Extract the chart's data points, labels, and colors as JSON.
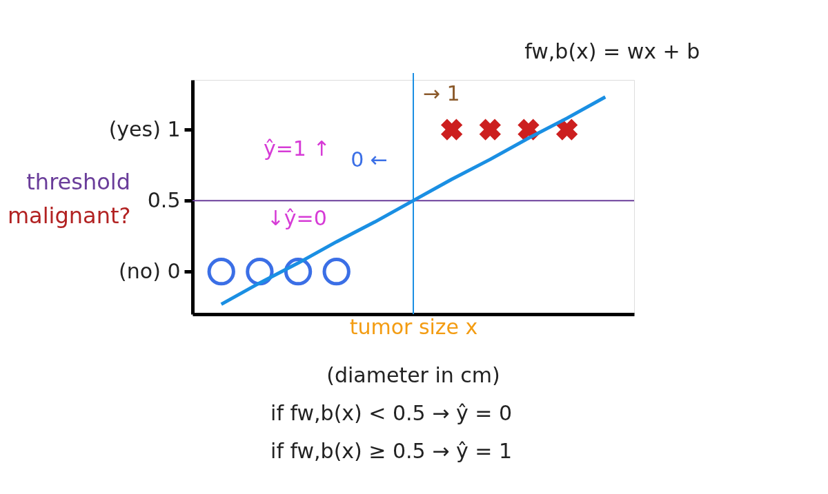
{
  "chart_data": {
    "type": "scatter",
    "xlabel": "tumor size x",
    "ylabel": "malignant?",
    "categories": [
      null,
      null,
      null,
      null,
      null,
      null,
      null,
      null,
      null,
      null,
      null
    ],
    "ylim": [
      -0.3,
      1.35
    ],
    "yticks": [
      {
        "value": 0,
        "label": "(no) 0"
      },
      {
        "value": 0.5,
        "label": "0.5"
      },
      {
        "value": 1,
        "label": "(yes) 1"
      }
    ],
    "tick_labels": "y",
    "grid": false,
    "series": [
      {
        "marker": "circle",
        "color": "#3b6fe6",
        "values": [
          0,
          0,
          0,
          0,
          null,
          null,
          null,
          null,
          null,
          null,
          null
        ]
      },
      {
        "marker": "cross",
        "color": "#cc1f1f",
        "values": [
          null,
          null,
          null,
          null,
          null,
          null,
          1,
          1,
          1,
          1,
          null
        ]
      },
      {
        "type": "line",
        "name": "fw,b(x) = wx + b",
        "color": "#1a8fe3",
        "line_style": "solid",
        "values": [
          -0.23,
          -0.08,
          0.06,
          0.21,
          0.35,
          0.5,
          0.65,
          0.79,
          0.94,
          1.08,
          1.23
        ]
      }
    ],
    "ref_lines": [
      {
        "axis": "y",
        "value": 0.5,
        "label": "threshold",
        "color": "#6a3d9a",
        "line_style": "solid"
      }
    ],
    "annotations": [
      "ŷ=1 ↑",
      "↓ŷ=0",
      "0 ←",
      "→ 1",
      "(diameter in cm)",
      "if fw,b(x) < 0.5 → ŷ = 0",
      "if fw,b(x) ≥ 0.5 → ŷ = 1"
    ]
  }
}
